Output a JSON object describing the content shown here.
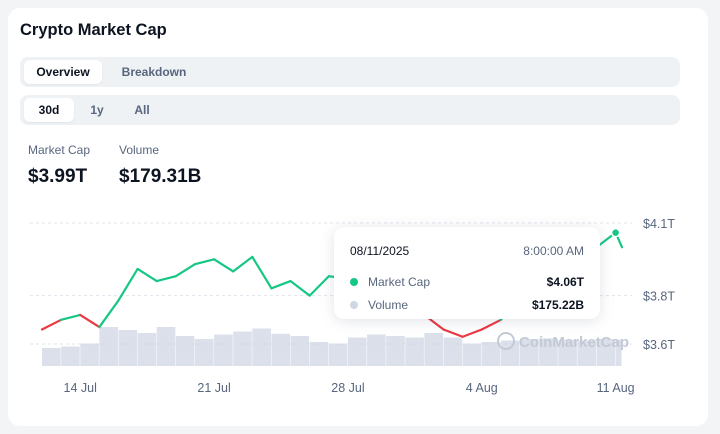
{
  "card": {
    "title": "Crypto Market Cap",
    "view_tabs": [
      {
        "label": "Overview",
        "active": true
      },
      {
        "label": "Breakdown",
        "active": false
      }
    ],
    "range_tabs": [
      {
        "label": "30d",
        "active": true
      },
      {
        "label": "1y",
        "active": false
      },
      {
        "label": "All",
        "active": false
      }
    ],
    "stats": [
      {
        "label": "Market Cap",
        "value": "$3.99T"
      },
      {
        "label": "Volume",
        "value": "$179.31B"
      }
    ]
  },
  "tooltip": {
    "date": "08/11/2025",
    "time": "8:00:00 AM",
    "rows": [
      {
        "name": "Market Cap",
        "value": "$4.06T",
        "color": "#16c784"
      },
      {
        "name": "Volume",
        "value": "$175.22B",
        "color": "#cfd6e4"
      }
    ]
  },
  "watermark": "CoinMarketCap",
  "colors": {
    "up": "#16c784",
    "down": "#ea3943",
    "volume": "#cfd6e4",
    "grid": "#dfe3ea",
    "axis_text": "#58667e"
  },
  "chart_data": {
    "type": "line",
    "title": "",
    "xlabel": "",
    "ylabel": "",
    "x_ticks": [
      "14 Jul",
      "21 Jul",
      "28 Jul",
      "4 Aug",
      "11 Aug"
    ],
    "y_ticks": [
      "$4.1T",
      "$3.8T",
      "$3.6T"
    ],
    "y_tick_values": [
      4.1,
      3.8,
      3.6
    ],
    "ylim": [
      3.6,
      4.1
    ],
    "grid": true,
    "series": [
      {
        "name": "Market Cap",
        "unit": "trillion USD",
        "x": [
          "2025-07-12",
          "2025-07-13",
          "2025-07-14",
          "2025-07-15",
          "2025-07-16",
          "2025-07-17",
          "2025-07-18",
          "2025-07-19",
          "2025-07-20",
          "2025-07-21",
          "2025-07-22",
          "2025-07-23",
          "2025-07-24",
          "2025-07-25",
          "2025-07-26",
          "2025-07-27",
          "2025-07-28",
          "2025-07-29",
          "2025-07-30",
          "2025-07-31",
          "2025-08-01",
          "2025-08-02",
          "2025-08-03",
          "2025-08-04",
          "2025-08-05",
          "2025-08-06",
          "2025-08-07",
          "2025-08-08",
          "2025-08-09",
          "2025-08-10",
          "2025-08-11",
          "2025-08-11T08:00"
        ],
        "values": [
          3.66,
          3.7,
          3.72,
          3.67,
          3.78,
          3.91,
          3.86,
          3.88,
          3.93,
          3.95,
          3.9,
          3.96,
          3.83,
          3.86,
          3.8,
          3.88,
          3.87,
          3.91,
          3.92,
          3.94,
          3.72,
          3.66,
          3.63,
          3.66,
          3.7,
          3.8,
          3.86,
          3.9,
          3.95,
          4.0,
          4.06,
          4.0
        ]
      },
      {
        "name": "Volume",
        "unit": "billion USD",
        "x": [
          "2025-07-12",
          "2025-07-13",
          "2025-07-14",
          "2025-07-15",
          "2025-07-16",
          "2025-07-17",
          "2025-07-18",
          "2025-07-19",
          "2025-07-20",
          "2025-07-21",
          "2025-07-22",
          "2025-07-23",
          "2025-07-24",
          "2025-07-25",
          "2025-07-26",
          "2025-07-27",
          "2025-07-28",
          "2025-07-29",
          "2025-07-30",
          "2025-07-31",
          "2025-08-01",
          "2025-08-02",
          "2025-08-03",
          "2025-08-04",
          "2025-08-05",
          "2025-08-06",
          "2025-08-07",
          "2025-08-08",
          "2025-08-09",
          "2025-08-10",
          "2025-08-11",
          "2025-08-11T08:00"
        ],
        "values": [
          120,
          130,
          150,
          260,
          240,
          220,
          260,
          200,
          180,
          210,
          230,
          250,
          215,
          200,
          160,
          150,
          190,
          210,
          200,
          190,
          220,
          190,
          150,
          160,
          170,
          180,
          185,
          175,
          170,
          180,
          175.22,
          179.31
        ]
      }
    ]
  }
}
